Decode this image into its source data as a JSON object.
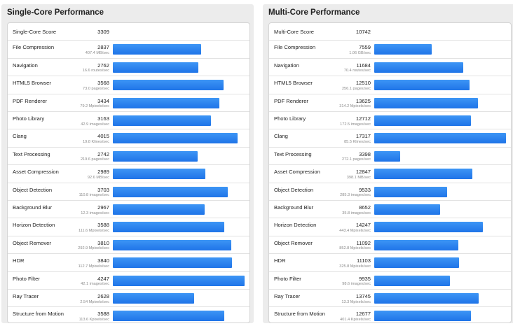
{
  "chart_data": [
    {
      "type": "bar",
      "title": "Single-Core Performance",
      "overall": {
        "label": "Single-Core Score",
        "value": "3309"
      },
      "scale_max": 4247,
      "rows": [
        {
          "name": "File Compression",
          "score": 2837,
          "rate": "407.4 MB/sec"
        },
        {
          "name": "Navigation",
          "score": 2762,
          "rate": "16.6 routes/sec"
        },
        {
          "name": "HTML5 Browser",
          "score": 3568,
          "rate": "73.0 pages/sec"
        },
        {
          "name": "PDF Renderer",
          "score": 3434,
          "rate": "79.2 Mpixels/sec"
        },
        {
          "name": "Photo Library",
          "score": 3163,
          "rate": "42.9 images/sec"
        },
        {
          "name": "Clang",
          "score": 4015,
          "rate": "19.8 Klines/sec"
        },
        {
          "name": "Text Processing",
          "score": 2742,
          "rate": "219.6 pages/sec"
        },
        {
          "name": "Asset Compression",
          "score": 2989,
          "rate": "92.6 MB/sec"
        },
        {
          "name": "Object Detection",
          "score": 3703,
          "rate": "110.8 images/sec"
        },
        {
          "name": "Background Blur",
          "score": 2967,
          "rate": "12.3 images/sec"
        },
        {
          "name": "Horizon Detection",
          "score": 3588,
          "rate": "111.6 Mpixels/sec"
        },
        {
          "name": "Object Remover",
          "score": 3810,
          "rate": "292.9 Mpixels/sec"
        },
        {
          "name": "HDR",
          "score": 3840,
          "rate": "112.7 Mpixels/sec"
        },
        {
          "name": "Photo Filter",
          "score": 4247,
          "rate": "42.1 images/sec"
        },
        {
          "name": "Ray Tracer",
          "score": 2628,
          "rate": "2.54 Mpixels/sec"
        },
        {
          "name": "Structure from Motion",
          "score": 3588,
          "rate": "113.6 Kpixels/sec"
        }
      ]
    },
    {
      "type": "bar",
      "title": "Multi-Core Performance",
      "overall": {
        "label": "Multi-Core Score",
        "value": "10742"
      },
      "scale_max": 17317,
      "rows": [
        {
          "name": "File Compression",
          "score": 7559,
          "rate": "1.06 GB/sec"
        },
        {
          "name": "Navigation",
          "score": 11684,
          "rate": "70.4 routes/sec"
        },
        {
          "name": "HTML5 Browser",
          "score": 12510,
          "rate": "256.1 pages/sec"
        },
        {
          "name": "PDF Renderer",
          "score": 13625,
          "rate": "314.2 Mpixels/sec"
        },
        {
          "name": "Photo Library",
          "score": 12712,
          "rate": "172.5 images/sec"
        },
        {
          "name": "Clang",
          "score": 17317,
          "rate": "85.5 Klines/sec"
        },
        {
          "name": "Text Processing",
          "score": 3398,
          "rate": "272.1 pages/sec"
        },
        {
          "name": "Asset Compression",
          "score": 12847,
          "rate": "398.1 MB/sec"
        },
        {
          "name": "Object Detection",
          "score": 9533,
          "rate": "285.3 images/sec"
        },
        {
          "name": "Background Blur",
          "score": 8652,
          "rate": "35.8 images/sec"
        },
        {
          "name": "Horizon Detection",
          "score": 14247,
          "rate": "443.4 Mpixels/sec"
        },
        {
          "name": "Object Remover",
          "score": 11092,
          "rate": "852.8 Mpixels/sec"
        },
        {
          "name": "HDR",
          "score": 11103,
          "rate": "325.8 Mpixels/sec"
        },
        {
          "name": "Photo Filter",
          "score": 9935,
          "rate": "98.6 images/sec"
        },
        {
          "name": "Ray Tracer",
          "score": 13745,
          "rate": "13.3 Mpixels/sec"
        },
        {
          "name": "Structure from Motion",
          "score": 12677,
          "rate": "401.4 Kpixels/sec"
        }
      ]
    }
  ]
}
